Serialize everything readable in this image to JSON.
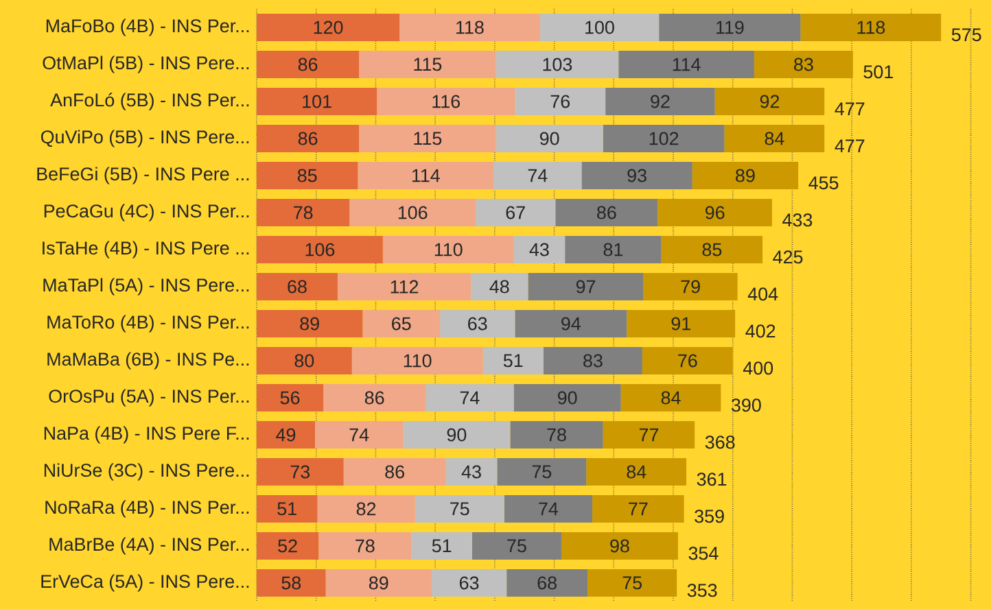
{
  "chart_data": {
    "type": "bar",
    "orientation": "horizontal",
    "stacked": true,
    "data_labels": true,
    "grid": "x",
    "categories": [
      "MaFoBo (4B) - INS Per...",
      "OtMaPl (5B) - INS Pere...",
      "AnFoLó (5B) - INS Per...",
      "QuViPo (5B) - INS Pere...",
      "BeFeGi (5B) - INS Pere ...",
      "PeCaGu (4C) - INS Per...",
      "IsTaHe (4B) - INS Pere ...",
      "MaTaPl (5A) - INS Pere...",
      "MaToRo (4B) - INS Per...",
      "MaMaBa (6B) - INS Pe...",
      "OrOsPu (5A) - INS Per...",
      "NaPa (4B) - INS Pere F...",
      "NiUrSe (3C) - INS Pere...",
      "NoRaRa (4B) - INS Per...",
      "MaBrBe (4A) - INS Per...",
      "ErVeCa (5A) - INS Pere..."
    ],
    "series": [
      {
        "color": "#e46c3a",
        "values": [
          120,
          86,
          101,
          86,
          85,
          78,
          106,
          68,
          89,
          80,
          56,
          49,
          73,
          51,
          52,
          58
        ]
      },
      {
        "color": "#f0a889",
        "values": [
          118,
          115,
          116,
          115,
          114,
          106,
          110,
          112,
          65,
          110,
          86,
          74,
          86,
          82,
          78,
          89
        ]
      },
      {
        "color": "#c0c0c0",
        "values": [
          100,
          103,
          76,
          90,
          74,
          67,
          43,
          48,
          63,
          51,
          74,
          90,
          43,
          75,
          51,
          63
        ]
      },
      {
        "color": "#808080",
        "values": [
          119,
          114,
          92,
          102,
          93,
          86,
          81,
          97,
          94,
          83,
          90,
          78,
          75,
          74,
          75,
          68
        ]
      },
      {
        "color": "#cc9a00",
        "values": [
          118,
          83,
          92,
          84,
          89,
          96,
          85,
          79,
          91,
          76,
          84,
          77,
          84,
          77,
          98,
          75
        ]
      }
    ],
    "totals": [
      "575",
      "501",
      "477",
      "477",
      "455",
      "433",
      "425",
      "404",
      "402",
      "400",
      "390",
      "368",
      "361",
      "359",
      "354",
      "353"
    ],
    "tick_labels": "y"
  }
}
